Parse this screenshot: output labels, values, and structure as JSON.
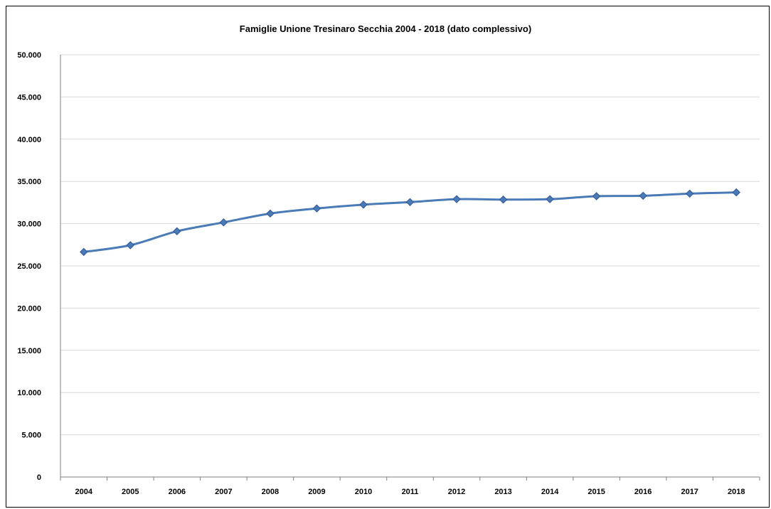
{
  "chart_data": {
    "type": "line",
    "title": "Famiglie Unione Tresinaro Secchia 2004 - 2018 (dato complessivo)",
    "xlabel": "",
    "ylabel": "",
    "categories": [
      "2004",
      "2005",
      "2006",
      "2007",
      "2008",
      "2009",
      "2010",
      "2011",
      "2012",
      "2013",
      "2014",
      "2015",
      "2016",
      "2017",
      "2018"
    ],
    "series": [
      {
        "values": [
          26650,
          27450,
          29100,
          30150,
          31200,
          31800,
          32250,
          32550,
          32900,
          32850,
          32900,
          33250,
          33300,
          33550,
          33700
        ]
      }
    ],
    "ylim": [
      0,
      50000
    ],
    "y_ticks": [
      0,
      5000,
      10000,
      15000,
      20000,
      25000,
      30000,
      35000,
      40000,
      45000,
      50000
    ],
    "y_tick_labels": [
      "0",
      "5.000",
      "10.000",
      "15.000",
      "20.000",
      "25.000",
      "30.000",
      "35.000",
      "40.000",
      "45.000",
      "50.000"
    ],
    "grid": true,
    "legend": "none",
    "line_color": "#4a7bb7",
    "marker_color": "#4a7bb7",
    "marker": "diamond"
  }
}
